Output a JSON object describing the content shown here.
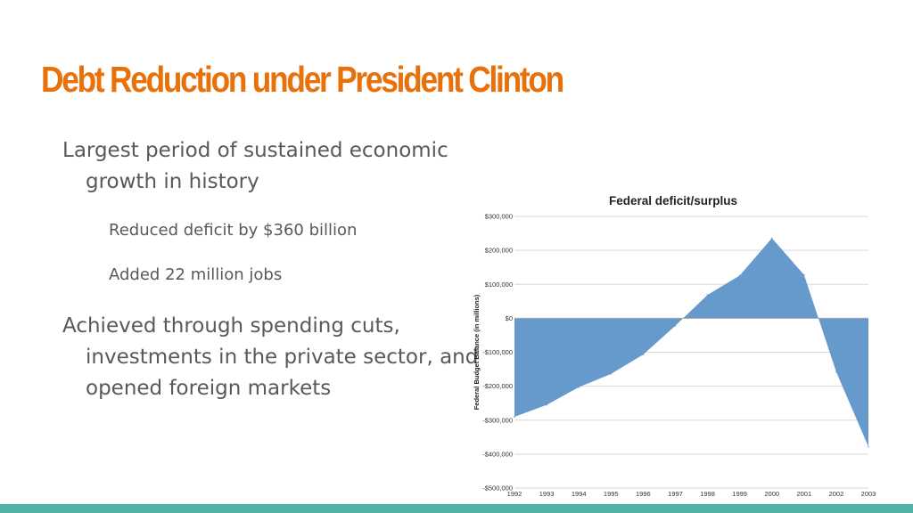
{
  "slide": {
    "title": "Debt Reduction under President Clinton",
    "bullets": [
      "Largest period of sustained economic growth in history",
      "Reduced deficit by $360 billion",
      "Added 22 million jobs",
      "Achieved through spending cuts, investments in the private sector, and opened foreign markets"
    ]
  },
  "colors": {
    "title": "#e8710a",
    "body_text": "#595959",
    "area_fill": "#6699cc",
    "accent_bar": "#4fb3a5"
  },
  "chart_data": {
    "type": "area",
    "title": "Federal deficit/surplus",
    "ylabel": "Federal Budget Balance (in millions)",
    "xlabel": "",
    "x": [
      1992,
      1993,
      1994,
      1995,
      1996,
      1997,
      1998,
      1999,
      2000,
      2001,
      2002,
      2003
    ],
    "values": [
      -290000,
      -255000,
      -203000,
      -164000,
      -107000,
      -22000,
      69000,
      126000,
      236000,
      128000,
      -158000,
      -378000
    ],
    "ylim": [
      -500000,
      300000
    ],
    "yticks": [
      300000,
      200000,
      100000,
      0,
      -100000,
      -200000,
      -300000,
      -400000,
      -500000
    ],
    "ytick_labels": [
      "$300,000",
      "$200,000",
      "$100,000",
      "$0",
      "-$100,000",
      "-$200,000",
      "-$300,000",
      "-$400,000",
      "-$500,000"
    ],
    "xtick_labels": [
      "1992",
      "1993",
      "1994",
      "1995",
      "1996",
      "1997",
      "1998",
      "1999",
      "2000",
      "2001",
      "2002",
      "2003"
    ],
    "grid": true,
    "legend": "none"
  }
}
